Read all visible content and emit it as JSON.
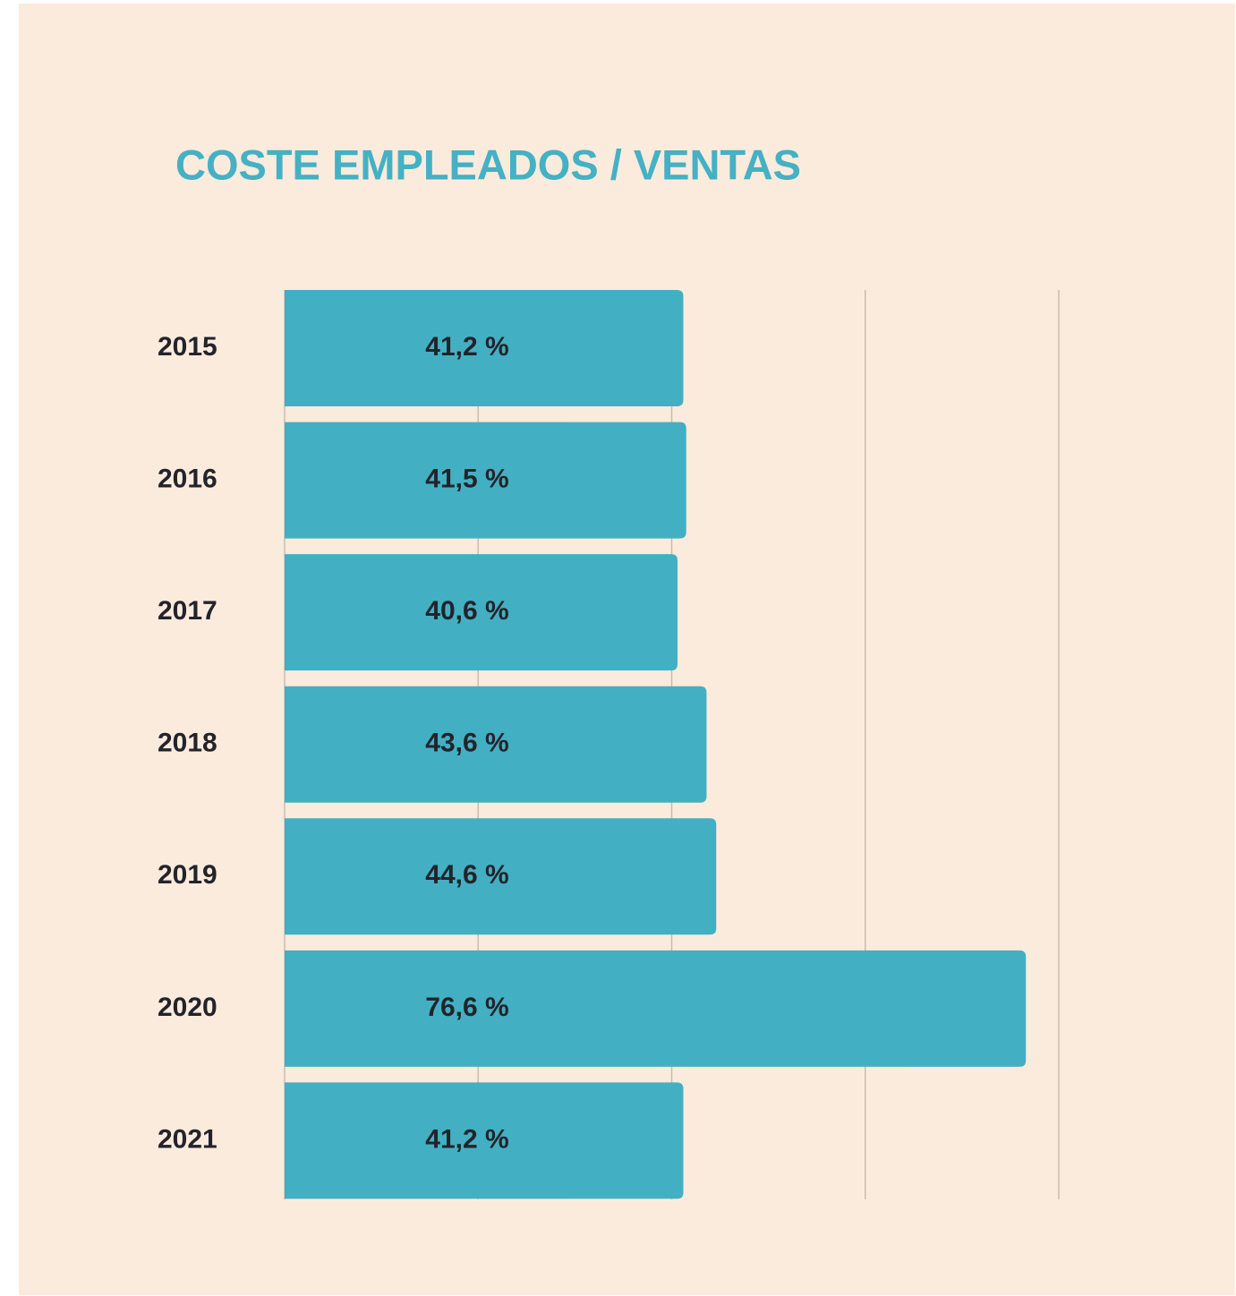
{
  "chart_data": {
    "type": "hbar",
    "title": "COSTE EMPLEADOS / VENTAS",
    "categories": [
      "2015",
      "2016",
      "2017",
      "2018",
      "2019",
      "2020",
      "2021"
    ],
    "values": [
      41.2,
      41.5,
      40.6,
      43.6,
      44.6,
      76.6,
      41.2
    ],
    "value_labels": [
      "41,2 %",
      "41,5 %",
      "40,6 %",
      "43,6 %",
      "44,6 %",
      "76,6 %",
      "41,2 %"
    ],
    "color": "#42b0c2",
    "xlim": [
      0,
      80
    ],
    "xticks": [
      0,
      20,
      40,
      60,
      80
    ],
    "grid": true
  }
}
